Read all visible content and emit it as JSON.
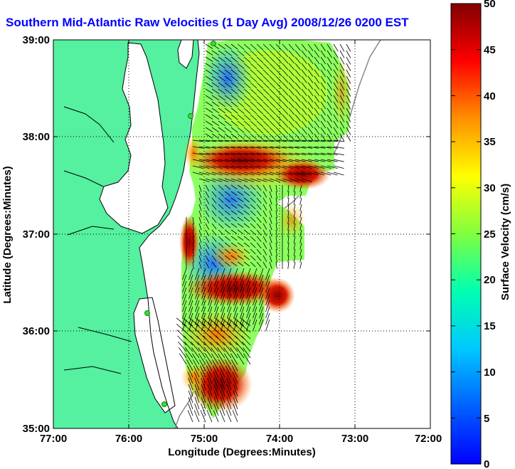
{
  "title": "Southern Mid-Atlantic Raw Velocities (1 Day Avg) 2008/12/26 0200 EST",
  "title_color": "#0000ff",
  "xlabel": "Longitude (Degrees:Minutes)",
  "ylabel": "Latitude (Degrees:Minutes)",
  "colorbar_label": "Surface Velocity (cm/s)",
  "x_ticks": [
    "77:00",
    "76:00",
    "75:00",
    "74:00",
    "73:00",
    "72:00"
  ],
  "y_ticks": [
    "39:00",
    "38:00",
    "37:00",
    "36:00",
    "35:00"
  ],
  "colorbar_ticks": [
    "50",
    "45",
    "40",
    "35",
    "30",
    "25",
    "20",
    "15",
    "10",
    "5",
    "0"
  ],
  "colors": {
    "land": "#55f0a0",
    "ocean": "#ffffff",
    "coastline": "#000000",
    "grid": "#000000",
    "bathymetry": "#888888",
    "station": "#33dd33"
  },
  "map_extent": {
    "lon": [
      -77,
      -72
    ],
    "lat": [
      35,
      39
    ]
  },
  "colorbar_range": [
    0,
    50
  ],
  "colormap": "jet"
}
